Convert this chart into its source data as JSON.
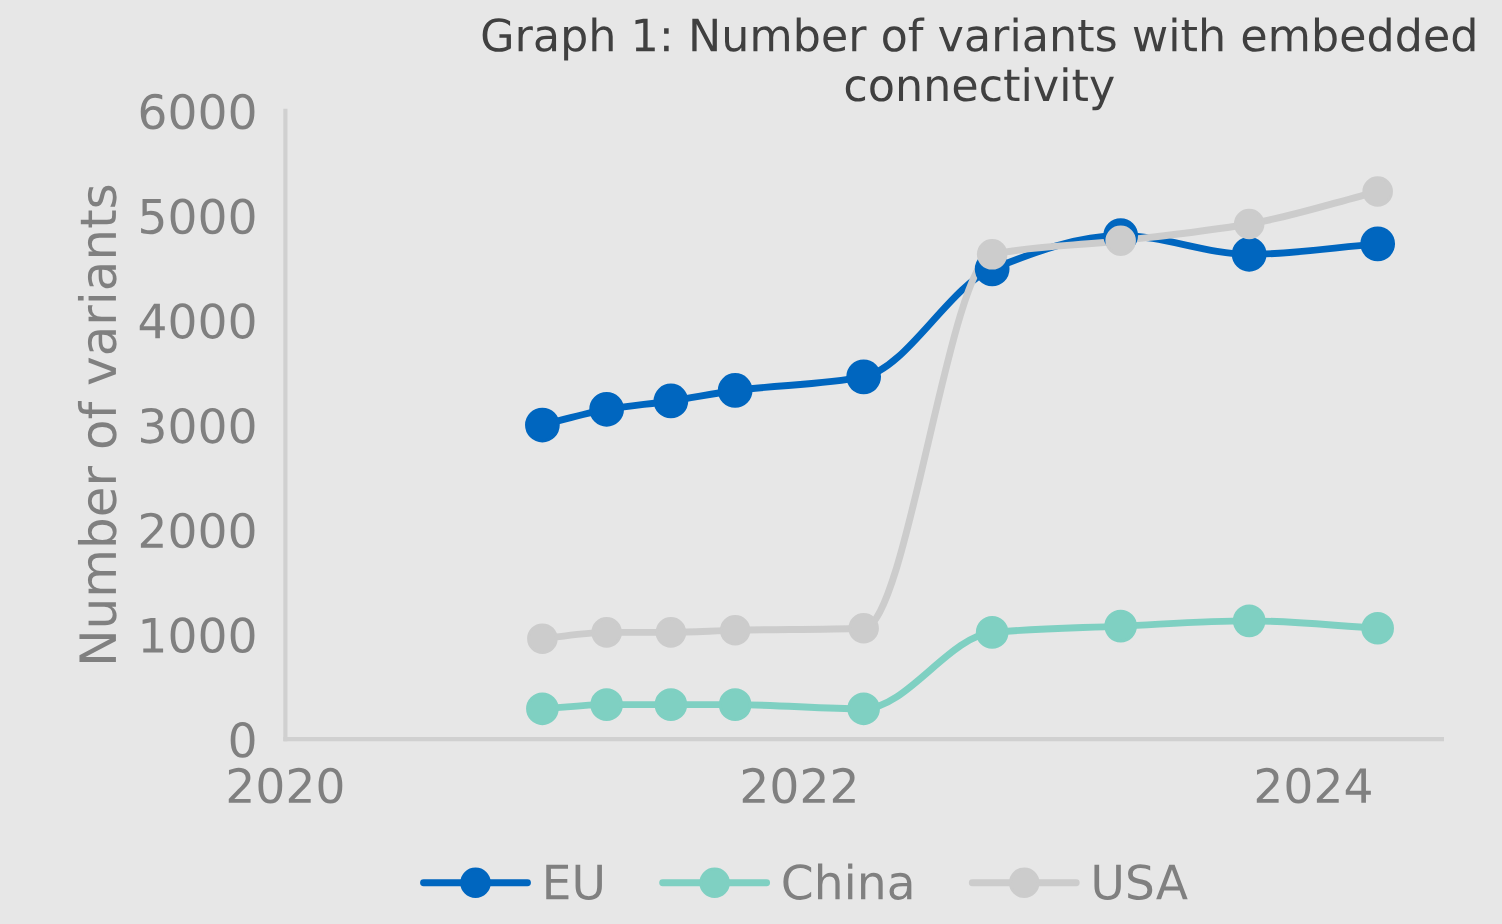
{
  "chart_data": {
    "type": "line",
    "title": "Graph 1: Number of variants with embedded connectivity",
    "ylabel": "Number of variants",
    "x": [
      2021.0,
      2021.25,
      2021.5,
      2021.75,
      2022.25,
      2022.75,
      2023.25,
      2023.75,
      2024.25
    ],
    "series": [
      {
        "name": "EU",
        "color": "#0066bf",
        "values": [
          3000,
          3150,
          3230,
          3330,
          3460,
          4490,
          4810,
          4630,
          4730
        ]
      },
      {
        "name": "China",
        "color": "#7fd0c2",
        "values": [
          290,
          330,
          330,
          330,
          290,
          1020,
          1080,
          1130,
          1060
        ]
      },
      {
        "name": "USA",
        "color": "#cccccc",
        "values": [
          960,
          1020,
          1020,
          1040,
          1060,
          4630,
          4760,
          4920,
          5230
        ]
      }
    ],
    "xlim": [
      2020,
      2024.5
    ],
    "xticks": [
      2020,
      2022,
      2024
    ],
    "ylim": [
      0,
      6000
    ],
    "yticks": [
      0,
      1000,
      2000,
      3000,
      4000,
      5000,
      6000
    ],
    "grid": false,
    "legend": "bottom",
    "marker": "circle",
    "line_style": "solid"
  }
}
